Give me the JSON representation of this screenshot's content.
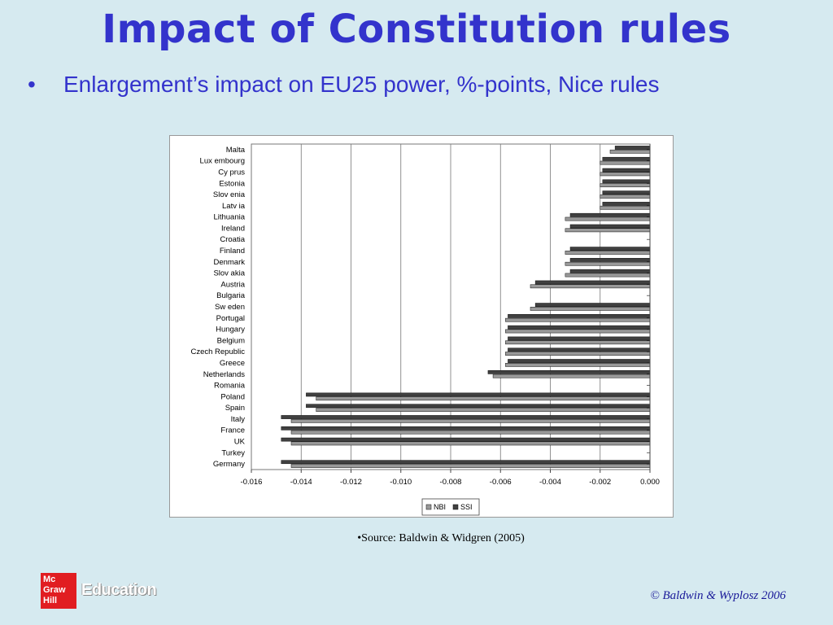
{
  "slide": {
    "title": "Impact of Constitution rules",
    "bullet_symbol": "•",
    "bullet_text": "Enlargement’s impact on EU25 power, %-points, Nice rules",
    "source": "•Source: Baldwin & Widgren (2005)",
    "copyright": "© Baldwin & Wyplosz 2006",
    "logo": {
      "box_lines": [
        "Mc",
        "Graw",
        "Hill"
      ],
      "text": "Education"
    }
  },
  "colors": {
    "title": "#3333cc",
    "background": "#d6eaf0",
    "nbi": "#999999",
    "ssi": "#404040"
  },
  "chart_data": {
    "type": "bar",
    "orientation": "horizontal",
    "categories": [
      "Malta",
      "Lux embourg",
      "Cy prus",
      "Estonia",
      "Slov enia",
      "Latv ia",
      "Lithuania",
      "Ireland",
      "Croatia",
      "Finland",
      "Denmark",
      "Slov akia",
      "Austria",
      "Bulgaria",
      "Sw eden",
      "Portugal",
      "Hungary",
      "Belgium",
      "Czech Republic",
      "Greece",
      "Netherlands",
      "Romania",
      "Poland",
      "Spain",
      "Italy",
      "France",
      "UK",
      "Turkey",
      "Germany"
    ],
    "series": [
      {
        "name": "NBI",
        "color": "#999999",
        "values": [
          -0.0016,
          -0.002,
          -0.002,
          -0.002,
          -0.002,
          -0.002,
          -0.0034,
          -0.0034,
          0,
          -0.0034,
          -0.0034,
          -0.0034,
          -0.0048,
          0,
          -0.0048,
          -0.0058,
          -0.0058,
          -0.0058,
          -0.0058,
          -0.0058,
          -0.0063,
          0,
          -0.0134,
          -0.0134,
          -0.0144,
          -0.0144,
          -0.0144,
          0,
          -0.0144
        ]
      },
      {
        "name": "SSI",
        "color": "#404040",
        "values": [
          -0.0014,
          -0.0019,
          -0.0019,
          -0.0019,
          -0.0019,
          -0.0019,
          -0.0032,
          -0.0032,
          0,
          -0.0032,
          -0.0032,
          -0.0032,
          -0.0046,
          0,
          -0.0046,
          -0.0057,
          -0.0057,
          -0.0057,
          -0.0057,
          -0.0057,
          -0.0065,
          0,
          -0.0138,
          -0.0138,
          -0.0148,
          -0.0148,
          -0.0148,
          0,
          -0.0148
        ]
      }
    ],
    "xlim": [
      -0.016,
      0.0
    ],
    "xticks": [
      "-0.016",
      "-0.014",
      "-0.012",
      "-0.010",
      "-0.008",
      "-0.006",
      "-0.004",
      "-0.002",
      "0.000"
    ],
    "xtick_values": [
      -0.016,
      -0.014,
      -0.012,
      -0.01,
      -0.008,
      -0.006,
      -0.004,
      -0.002,
      0.0
    ],
    "legend": [
      "NBI",
      "SSI"
    ],
    "legend_position": "bottom",
    "grid": "vertical"
  }
}
